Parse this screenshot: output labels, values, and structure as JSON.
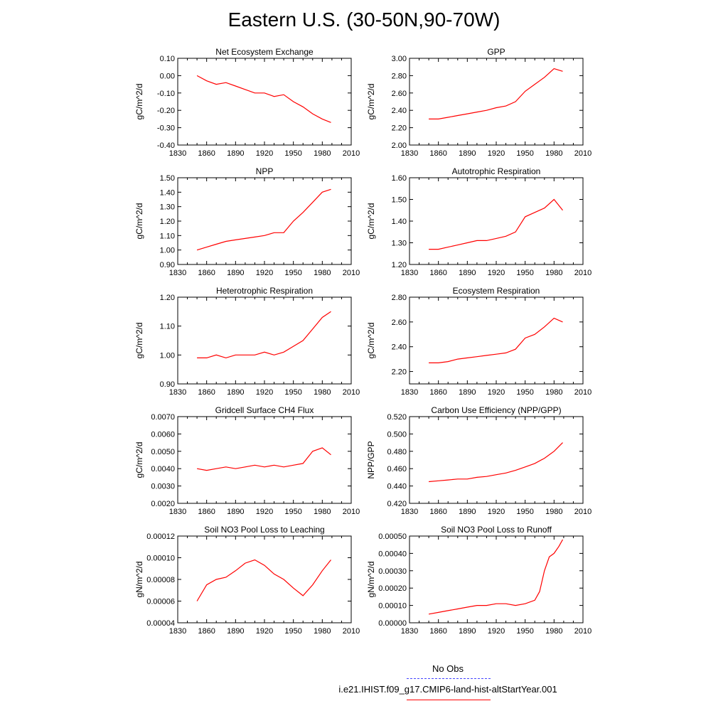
{
  "title": "Eastern U.S. (30-50N,90-70W)",
  "legend": {
    "obs_label": "No Obs",
    "obs_color": "#4444ff",
    "case_label": "i.e21.IHIST.f09_g17.CMIP6-land-hist-altStartYear.001",
    "case_color": "#ff0000"
  },
  "chart_data": [
    {
      "type": "line",
      "title": "Net Ecosystem Exchange",
      "xlabel": "",
      "ylabel": "gC/m^2/d",
      "xlim": [
        1830,
        2010
      ],
      "xticks": [
        "1830",
        "1860",
        "1890",
        "1920",
        "1950",
        "1980",
        "2010"
      ],
      "ylim": [
        -0.4,
        0.1
      ],
      "yticks": [
        "-0.40",
        "-0.30",
        "-0.20",
        "-0.10",
        "0.00",
        "0.10"
      ],
      "series": [
        {
          "color": "#ff0000",
          "x": [
            1850,
            1860,
            1870,
            1880,
            1890,
            1900,
            1910,
            1920,
            1930,
            1940,
            1950,
            1960,
            1970,
            1980,
            1989
          ],
          "y": [
            0.0,
            -0.03,
            -0.05,
            -0.04,
            -0.06,
            -0.08,
            -0.1,
            -0.1,
            -0.12,
            -0.11,
            -0.15,
            -0.18,
            -0.22,
            -0.25,
            -0.27
          ]
        }
      ]
    },
    {
      "type": "line",
      "title": "GPP",
      "xlabel": "",
      "ylabel": "gC/m^2/d",
      "xlim": [
        1830,
        2010
      ],
      "xticks": [
        "1830",
        "1860",
        "1890",
        "1920",
        "1950",
        "1980",
        "2010"
      ],
      "ylim": [
        2.0,
        3.0
      ],
      "yticks": [
        "2.00",
        "2.20",
        "2.40",
        "2.60",
        "2.80",
        "3.00"
      ],
      "series": [
        {
          "color": "#ff0000",
          "x": [
            1850,
            1860,
            1870,
            1880,
            1890,
            1900,
            1910,
            1920,
            1930,
            1940,
            1950,
            1960,
            1970,
            1980,
            1989
          ],
          "y": [
            2.3,
            2.3,
            2.32,
            2.34,
            2.36,
            2.38,
            2.4,
            2.43,
            2.45,
            2.5,
            2.62,
            2.7,
            2.78,
            2.88,
            2.85
          ]
        }
      ]
    },
    {
      "type": "line",
      "title": "NPP",
      "xlabel": "",
      "ylabel": "gC/m^2/d",
      "xlim": [
        1830,
        2010
      ],
      "xticks": [
        "1830",
        "1860",
        "1890",
        "1920",
        "1950",
        "1980",
        "2010"
      ],
      "ylim": [
        0.9,
        1.5
      ],
      "yticks": [
        "0.90",
        "1.00",
        "1.10",
        "1.20",
        "1.30",
        "1.40",
        "1.50"
      ],
      "series": [
        {
          "color": "#ff0000",
          "x": [
            1850,
            1860,
            1870,
            1880,
            1890,
            1900,
            1910,
            1920,
            1930,
            1940,
            1950,
            1960,
            1970,
            1980,
            1989
          ],
          "y": [
            1.0,
            1.02,
            1.04,
            1.06,
            1.07,
            1.08,
            1.09,
            1.1,
            1.12,
            1.12,
            1.2,
            1.26,
            1.33,
            1.4,
            1.42
          ]
        }
      ]
    },
    {
      "type": "line",
      "title": "Autotrophic Respiration",
      "xlabel": "",
      "ylabel": "gC/m^2/d",
      "xlim": [
        1830,
        2010
      ],
      "xticks": [
        "1830",
        "1860",
        "1890",
        "1920",
        "1950",
        "1980",
        "2010"
      ],
      "ylim": [
        1.2,
        1.6
      ],
      "yticks": [
        "1.20",
        "1.30",
        "1.40",
        "1.50",
        "1.60"
      ],
      "series": [
        {
          "color": "#ff0000",
          "x": [
            1850,
            1860,
            1870,
            1880,
            1890,
            1900,
            1910,
            1920,
            1930,
            1940,
            1950,
            1960,
            1970,
            1980,
            1989
          ],
          "y": [
            1.27,
            1.27,
            1.28,
            1.29,
            1.3,
            1.31,
            1.31,
            1.32,
            1.33,
            1.35,
            1.42,
            1.44,
            1.46,
            1.5,
            1.45
          ]
        }
      ]
    },
    {
      "type": "line",
      "title": "Heterotrophic Respiration",
      "xlabel": "",
      "ylabel": "gC/m^2/d",
      "xlim": [
        1830,
        2010
      ],
      "xticks": [
        "1830",
        "1860",
        "1890",
        "1920",
        "1950",
        "1980",
        "2010"
      ],
      "ylim": [
        0.9,
        1.2
      ],
      "yticks": [
        "0.90",
        "1.00",
        "1.10",
        "1.20"
      ],
      "series": [
        {
          "color": "#ff0000",
          "x": [
            1850,
            1860,
            1870,
            1880,
            1890,
            1900,
            1910,
            1920,
            1930,
            1940,
            1950,
            1960,
            1970,
            1980,
            1989
          ],
          "y": [
            0.99,
            0.99,
            1.0,
            0.99,
            1.0,
            1.0,
            1.0,
            1.01,
            1.0,
            1.01,
            1.03,
            1.05,
            1.09,
            1.13,
            1.15
          ]
        }
      ]
    },
    {
      "type": "line",
      "title": "Ecosystem Respiration",
      "xlabel": "",
      "ylabel": "gC/m^2/d",
      "xlim": [
        1830,
        2010
      ],
      "xticks": [
        "1830",
        "1860",
        "1890",
        "1920",
        "1950",
        "1980",
        "2010"
      ],
      "ylim": [
        2.1,
        2.8
      ],
      "yticks": [
        "2.20",
        "2.40",
        "2.60",
        "2.80"
      ],
      "series": [
        {
          "color": "#ff0000",
          "x": [
            1850,
            1860,
            1870,
            1880,
            1890,
            1900,
            1910,
            1920,
            1930,
            1940,
            1950,
            1960,
            1970,
            1980,
            1989
          ],
          "y": [
            2.27,
            2.27,
            2.28,
            2.3,
            2.31,
            2.32,
            2.33,
            2.34,
            2.35,
            2.38,
            2.47,
            2.5,
            2.56,
            2.63,
            2.6
          ]
        }
      ]
    },
    {
      "type": "line",
      "title": "Gridcell Surface CH4 Flux",
      "xlabel": "",
      "ylabel": "gC/m^2/d",
      "xlim": [
        1830,
        2010
      ],
      "xticks": [
        "1830",
        "1860",
        "1890",
        "1920",
        "1950",
        "1980",
        "2010"
      ],
      "ylim": [
        0.002,
        0.007
      ],
      "yticks": [
        "0.0020",
        "0.0030",
        "0.0040",
        "0.0050",
        "0.0060",
        "0.0070"
      ],
      "series": [
        {
          "color": "#ff0000",
          "x": [
            1850,
            1860,
            1870,
            1880,
            1890,
            1900,
            1910,
            1920,
            1930,
            1940,
            1950,
            1960,
            1970,
            1980,
            1989
          ],
          "y": [
            0.004,
            0.0039,
            0.004,
            0.0041,
            0.004,
            0.0041,
            0.0042,
            0.0041,
            0.0042,
            0.0041,
            0.0042,
            0.0043,
            0.005,
            0.0052,
            0.0048
          ]
        }
      ]
    },
    {
      "type": "line",
      "title": "Carbon Use Efficiency (NPP/GPP)",
      "xlabel": "",
      "ylabel": "NPP/GPP",
      "xlim": [
        1830,
        2010
      ],
      "xticks": [
        "1830",
        "1860",
        "1890",
        "1920",
        "1950",
        "1980",
        "2010"
      ],
      "ylim": [
        0.42,
        0.52
      ],
      "yticks": [
        "0.420",
        "0.440",
        "0.460",
        "0.480",
        "0.500",
        "0.520"
      ],
      "series": [
        {
          "color": "#ff0000",
          "x": [
            1850,
            1860,
            1870,
            1880,
            1890,
            1900,
            1910,
            1920,
            1930,
            1940,
            1950,
            1960,
            1970,
            1980,
            1989
          ],
          "y": [
            0.445,
            0.446,
            0.447,
            0.448,
            0.448,
            0.45,
            0.451,
            0.453,
            0.455,
            0.458,
            0.462,
            0.466,
            0.472,
            0.48,
            0.49
          ]
        }
      ]
    },
    {
      "type": "line",
      "title": "Soil NO3 Pool Loss to Leaching",
      "xlabel": "",
      "ylabel": "gN/m^2/d",
      "xlim": [
        1830,
        2010
      ],
      "xticks": [
        "1830",
        "1860",
        "1890",
        "1920",
        "1950",
        "1980",
        "2010"
      ],
      "ylim": [
        4e-05,
        0.00012
      ],
      "yticks": [
        "0.00004",
        "0.00006",
        "0.00008",
        "0.00010",
        "0.00012"
      ],
      "series": [
        {
          "color": "#ff0000",
          "x": [
            1850,
            1860,
            1870,
            1880,
            1890,
            1900,
            1910,
            1920,
            1930,
            1940,
            1950,
            1960,
            1970,
            1980,
            1989
          ],
          "y": [
            6e-05,
            7.5e-05,
            8e-05,
            8.2e-05,
            8.8e-05,
            9.5e-05,
            9.8e-05,
            9.3e-05,
            8.5e-05,
            8e-05,
            7.2e-05,
            6.5e-05,
            7.5e-05,
            8.8e-05,
            9.8e-05
          ]
        }
      ]
    },
    {
      "type": "line",
      "title": "Soil NO3 Pool Loss to Runoff",
      "xlabel": "",
      "ylabel": "gN/m^2/d",
      "xlim": [
        1830,
        2010
      ],
      "xticks": [
        "1830",
        "1860",
        "1890",
        "1920",
        "1950",
        "1980",
        "2010"
      ],
      "ylim": [
        0.0,
        0.0005
      ],
      "yticks": [
        "0.00000",
        "0.00010",
        "0.00020",
        "0.00030",
        "0.00040",
        "0.00050"
      ],
      "series": [
        {
          "color": "#ff0000",
          "x": [
            1850,
            1860,
            1870,
            1880,
            1890,
            1900,
            1910,
            1920,
            1930,
            1940,
            1950,
            1960,
            1965,
            1970,
            1975,
            1980,
            1985,
            1989
          ],
          "y": [
            5e-05,
            6e-05,
            7e-05,
            8e-05,
            9e-05,
            0.0001,
            0.0001,
            0.00011,
            0.00011,
            0.0001,
            0.00011,
            0.00013,
            0.00018,
            0.0003,
            0.00038,
            0.0004,
            0.00044,
            0.00048
          ]
        }
      ]
    }
  ]
}
